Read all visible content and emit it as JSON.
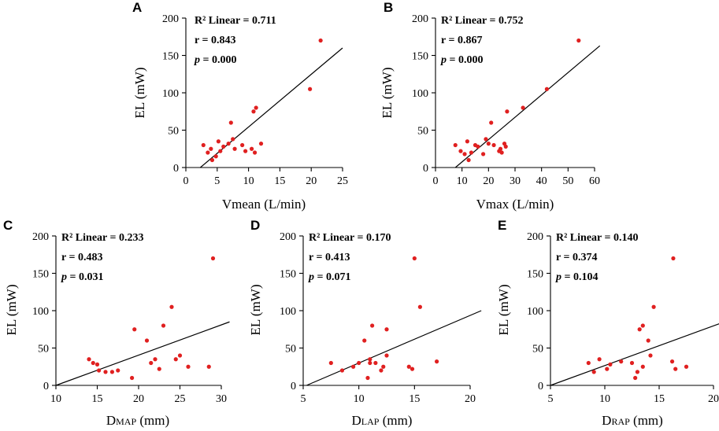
{
  "figure": {
    "panels": [
      {
        "letter": "A",
        "r2": "R² Linear = 0.711",
        "r": "r = 0.843",
        "p_label": "p",
        "p_value": " = 0.000",
        "xlabel": "Vmean (L/min)",
        "ylabel": "EL (mW)"
      },
      {
        "letter": "B",
        "r2": "R² Linear = 0.752",
        "r": "r = 0.867",
        "p_label": "p",
        "p_value": " = 0.000",
        "xlabel": "Vmax (L/min)",
        "ylabel": "EL (mW)"
      },
      {
        "letter": "C",
        "r2": "R² Linear = 0.233",
        "r": "r = 0.483",
        "p_label": "p",
        "p_value": " = 0.031",
        "xlabel_main": "D",
        "xlabel_sub": "MAP",
        "xlabel_unit": " (mm)",
        "ylabel": "EL (mW)"
      },
      {
        "letter": "D",
        "r2": "R² Linear = 0.170",
        "r": "r = 0.413",
        "p_label": "p",
        "p_value": " = 0.071",
        "xlabel_main": "D",
        "xlabel_sub": "LAP",
        "xlabel_unit": " (mm)",
        "ylabel": "EL (mW)"
      },
      {
        "letter": "E",
        "r2": "R² Linear = 0.140",
        "r": "r = 0.374",
        "p_label": "p",
        "p_value": " = 0.104",
        "xlabel_main": "D",
        "xlabel_sub": "RAP",
        "xlabel_unit": " (mm)",
        "ylabel": "EL (mW)"
      }
    ]
  },
  "chart_data": [
    {
      "type": "scatter",
      "title": "A",
      "xlabel": "Vmean (L/min)",
      "ylabel": "EL (mW)",
      "xlim": [
        0,
        25
      ],
      "ylim": [
        0,
        200
      ],
      "xticks": [
        0,
        5,
        10,
        15,
        20,
        25
      ],
      "yticks": [
        0,
        50,
        100,
        150,
        200
      ],
      "points": [
        [
          2.8,
          30
        ],
        [
          3.5,
          20
        ],
        [
          4,
          25
        ],
        [
          4.2,
          10
        ],
        [
          4.8,
          15
        ],
        [
          5.2,
          35
        ],
        [
          5.5,
          22
        ],
        [
          6,
          28
        ],
        [
          6.8,
          32
        ],
        [
          7.2,
          60
        ],
        [
          7.5,
          38
        ],
        [
          7.8,
          25
        ],
        [
          9,
          30
        ],
        [
          9.5,
          22
        ],
        [
          10.5,
          25
        ],
        [
          10.8,
          75
        ],
        [
          11,
          20
        ],
        [
          11.2,
          80
        ],
        [
          12,
          32
        ],
        [
          19.8,
          105
        ],
        [
          21.5,
          170
        ]
      ],
      "fit_line": [
        [
          2.3,
          0
        ],
        [
          25,
          160
        ]
      ],
      "annotations": [
        "R² Linear = 0.711",
        "r = 0.843",
        "p = 0.000"
      ],
      "point_color": "#e02020"
    },
    {
      "type": "scatter",
      "title": "B",
      "xlabel": "Vmax (L/min)",
      "ylabel": "EL (mW)",
      "xlim": [
        0,
        60
      ],
      "ylim": [
        0,
        200
      ],
      "xticks": [
        0,
        10,
        20,
        30,
        40,
        50,
        60
      ],
      "yticks": [
        0,
        50,
        100,
        150,
        200
      ],
      "points": [
        [
          7.5,
          30
        ],
        [
          9.5,
          22
        ],
        [
          11,
          18
        ],
        [
          12,
          35
        ],
        [
          12.5,
          10
        ],
        [
          13.5,
          20
        ],
        [
          15,
          30
        ],
        [
          16,
          28
        ],
        [
          18,
          18
        ],
        [
          19,
          38
        ],
        [
          20,
          32
        ],
        [
          21,
          60
        ],
        [
          22,
          30
        ],
        [
          24,
          22
        ],
        [
          24.5,
          25
        ],
        [
          25,
          20
        ],
        [
          26,
          32
        ],
        [
          26.5,
          28
        ],
        [
          27,
          75
        ],
        [
          33,
          80
        ],
        [
          42,
          105
        ],
        [
          54,
          170
        ]
      ],
      "fit_line": [
        [
          7.5,
          0
        ],
        [
          62,
          163
        ]
      ],
      "annotations": [
        "R² Linear = 0.752",
        "r = 0.867",
        "p = 0.000"
      ],
      "point_color": "#e02020"
    },
    {
      "type": "scatter",
      "title": "C",
      "xlabel": "DMAP (mm)",
      "ylabel": "EL (mW)",
      "xlim": [
        10,
        30
      ],
      "ylim": [
        0,
        200
      ],
      "xticks": [
        10,
        15,
        20,
        25,
        30
      ],
      "yticks": [
        0,
        50,
        100,
        150,
        200
      ],
      "points": [
        [
          14,
          35
        ],
        [
          14.5,
          30
        ],
        [
          15,
          28
        ],
        [
          15.2,
          20
        ],
        [
          16,
          18
        ],
        [
          16.8,
          18
        ],
        [
          17.5,
          20
        ],
        [
          19.2,
          10
        ],
        [
          19.5,
          75
        ],
        [
          21,
          60
        ],
        [
          21.5,
          30
        ],
        [
          22,
          35
        ],
        [
          22.5,
          22
        ],
        [
          23,
          80
        ],
        [
          24,
          105
        ],
        [
          24.5,
          35
        ],
        [
          25,
          40
        ],
        [
          26,
          25
        ],
        [
          28.5,
          25
        ],
        [
          29,
          170
        ]
      ],
      "fit_line": [
        [
          10,
          0
        ],
        [
          31,
          85
        ]
      ],
      "annotations": [
        "R² Linear = 0.233",
        "r = 0.483",
        "p = 0.031"
      ],
      "point_color": "#e02020"
    },
    {
      "type": "scatter",
      "title": "D",
      "xlabel": "DLAP (mm)",
      "ylabel": "EL (mW)",
      "xlim": [
        5,
        20
      ],
      "ylim": [
        0,
        200
      ],
      "xticks": [
        5,
        10,
        15,
        20
      ],
      "yticks": [
        0,
        50,
        100,
        150,
        200
      ],
      "points": [
        [
          7.5,
          30
        ],
        [
          8.5,
          20
        ],
        [
          9.5,
          25
        ],
        [
          10,
          30
        ],
        [
          10.5,
          60
        ],
        [
          10.8,
          10
        ],
        [
          11,
          35
        ],
        [
          11,
          30
        ],
        [
          11.2,
          80
        ],
        [
          11.5,
          30
        ],
        [
          12,
          20
        ],
        [
          12.2,
          25
        ],
        [
          12.5,
          75
        ],
        [
          12.5,
          40
        ],
        [
          14.5,
          25
        ],
        [
          14.8,
          22
        ],
        [
          15,
          170
        ],
        [
          15.5,
          105
        ],
        [
          17,
          32
        ]
      ],
      "fit_line": [
        [
          5.3,
          0
        ],
        [
          21,
          100
        ]
      ],
      "annotations": [
        "R² Linear = 0.170",
        "r = 0.413",
        "p = 0.071"
      ],
      "point_color": "#e02020"
    },
    {
      "type": "scatter",
      "title": "E",
      "xlabel": "DRAP (mm)",
      "ylabel": "EL (mW)",
      "xlim": [
        5,
        20
      ],
      "ylim": [
        0,
        200
      ],
      "xticks": [
        5,
        10,
        15,
        20
      ],
      "yticks": [
        0,
        50,
        100,
        150,
        200
      ],
      "points": [
        [
          8.5,
          30
        ],
        [
          9,
          18
        ],
        [
          9.5,
          35
        ],
        [
          10.2,
          22
        ],
        [
          10.5,
          28
        ],
        [
          11.5,
          32
        ],
        [
          12.5,
          30
        ],
        [
          12.8,
          10
        ],
        [
          13,
          18
        ],
        [
          13.2,
          75
        ],
        [
          13.5,
          80
        ],
        [
          13.5,
          25
        ],
        [
          14,
          60
        ],
        [
          14.2,
          40
        ],
        [
          14.5,
          105
        ],
        [
          16.2,
          32
        ],
        [
          16.3,
          170
        ],
        [
          16.5,
          22
        ],
        [
          17.5,
          25
        ]
      ],
      "fit_line": [
        [
          5,
          0
        ],
        [
          21,
          85
        ]
      ],
      "annotations": [
        "R² Linear = 0.140",
        "r = 0.374",
        "p = 0.104"
      ],
      "point_color": "#e02020"
    }
  ]
}
